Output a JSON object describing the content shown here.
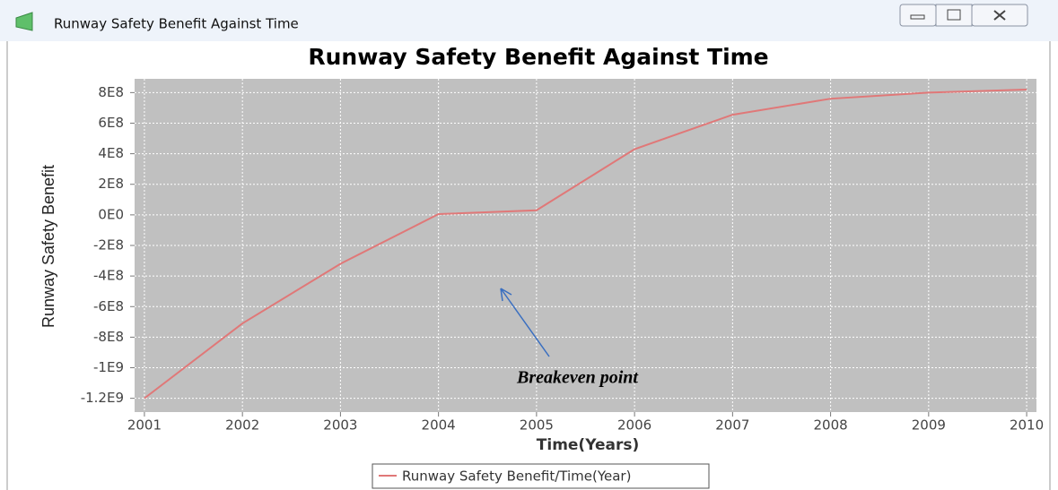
{
  "window": {
    "title": "Runway Safety Benefit Against Time"
  },
  "chart_data": {
    "type": "line",
    "title": "Runway Safety Benefit Against Time",
    "x_label": "Time(Years)",
    "y_label": "Runway Safety Benefit",
    "x": [
      2001,
      2002,
      2003,
      2004,
      2005,
      2006,
      2007,
      2008,
      2009,
      2010
    ],
    "series": [
      {
        "name": "Runway Safety Benefit/Time(Year)",
        "color": "#e07878",
        "values": [
          -1200000000,
          -710000000,
          -320000000,
          5000000,
          30000000,
          430000000,
          655000000,
          760000000,
          800000000,
          820000000
        ]
      }
    ],
    "xlim": [
      2000.9,
      2010.1
    ],
    "xticks": [
      2001,
      2002,
      2003,
      2004,
      2005,
      2006,
      2007,
      2008,
      2009,
      2010
    ],
    "ylim": [
      -1290000000,
      890000000
    ],
    "yticks": [
      {
        "value": -1200000000,
        "label": "-1.2E9"
      },
      {
        "value": -1000000000,
        "label": "-1E9"
      },
      {
        "value": -800000000,
        "label": "-8E8"
      },
      {
        "value": -600000000,
        "label": "-6E8"
      },
      {
        "value": -400000000,
        "label": "-4E8"
      },
      {
        "value": -200000000,
        "label": "-2E8"
      },
      {
        "value": 0,
        "label": "0E0"
      },
      {
        "value": 200000000,
        "label": "2E8"
      },
      {
        "value": 400000000,
        "label": "4E8"
      },
      {
        "value": 600000000,
        "label": "6E8"
      },
      {
        "value": 800000000,
        "label": "8E8"
      }
    ],
    "grid": true,
    "legend": "bottom",
    "annotation": "Breakeven point"
  }
}
